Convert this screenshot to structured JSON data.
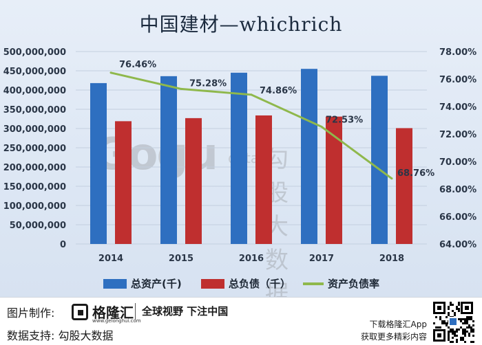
{
  "title": "中国建材—whichrich",
  "chart_data": {
    "type": "bar",
    "categories": [
      "2014",
      "2015",
      "2016",
      "2017",
      "2018"
    ],
    "series": [
      {
        "name": "总资产(千)",
        "type": "bar",
        "axis": "left",
        "color": "#2e6fc0",
        "values": [
          418000000,
          436000000,
          445000000,
          455000000,
          437000000
        ]
      },
      {
        "name": "总负债（千）",
        "type": "bar",
        "axis": "left",
        "color": "#bf2f2f",
        "values": [
          319000000,
          327000000,
          334000000,
          331000000,
          301000000
        ]
      },
      {
        "name": "资产负债率",
        "type": "line",
        "axis": "right",
        "color": "#8fb84c",
        "values": [
          76.46,
          75.28,
          74.86,
          72.53,
          68.76
        ],
        "labels": [
          "76.46%",
          "75.28%",
          "74.86%",
          "72.53%",
          "68.76%"
        ]
      }
    ],
    "y_left": {
      "min": 0,
      "max": 500000000,
      "ticks": [
        "0",
        "50,000,000",
        "100,000,000",
        "150,000,000",
        "200,000,000",
        "250,000,000",
        "300,000,000",
        "350,000,000",
        "400,000,000",
        "450,000,000",
        "500,000,000"
      ]
    },
    "y_right": {
      "min": 64,
      "max": 78,
      "ticks": [
        "64.00%",
        "66.00%",
        "68.00%",
        "70.00%",
        "72.00%",
        "74.00%",
        "76.00%",
        "78.00%"
      ]
    },
    "legend_position": "bottom",
    "grid": true
  },
  "watermark": {
    "logo": "Gogu",
    "data": "data",
    "cn": "勾股大数据"
  },
  "footer": {
    "made_by_label": "图片制作:",
    "brand_name": "格隆汇",
    "brand_sub": "www.gelonghui.com",
    "slogan": "全球视野 下注中国",
    "data_support_label": "数据支持: 勾股大数据",
    "download_line1": "下载格隆汇App",
    "download_line2": "获取更多精彩内容"
  }
}
